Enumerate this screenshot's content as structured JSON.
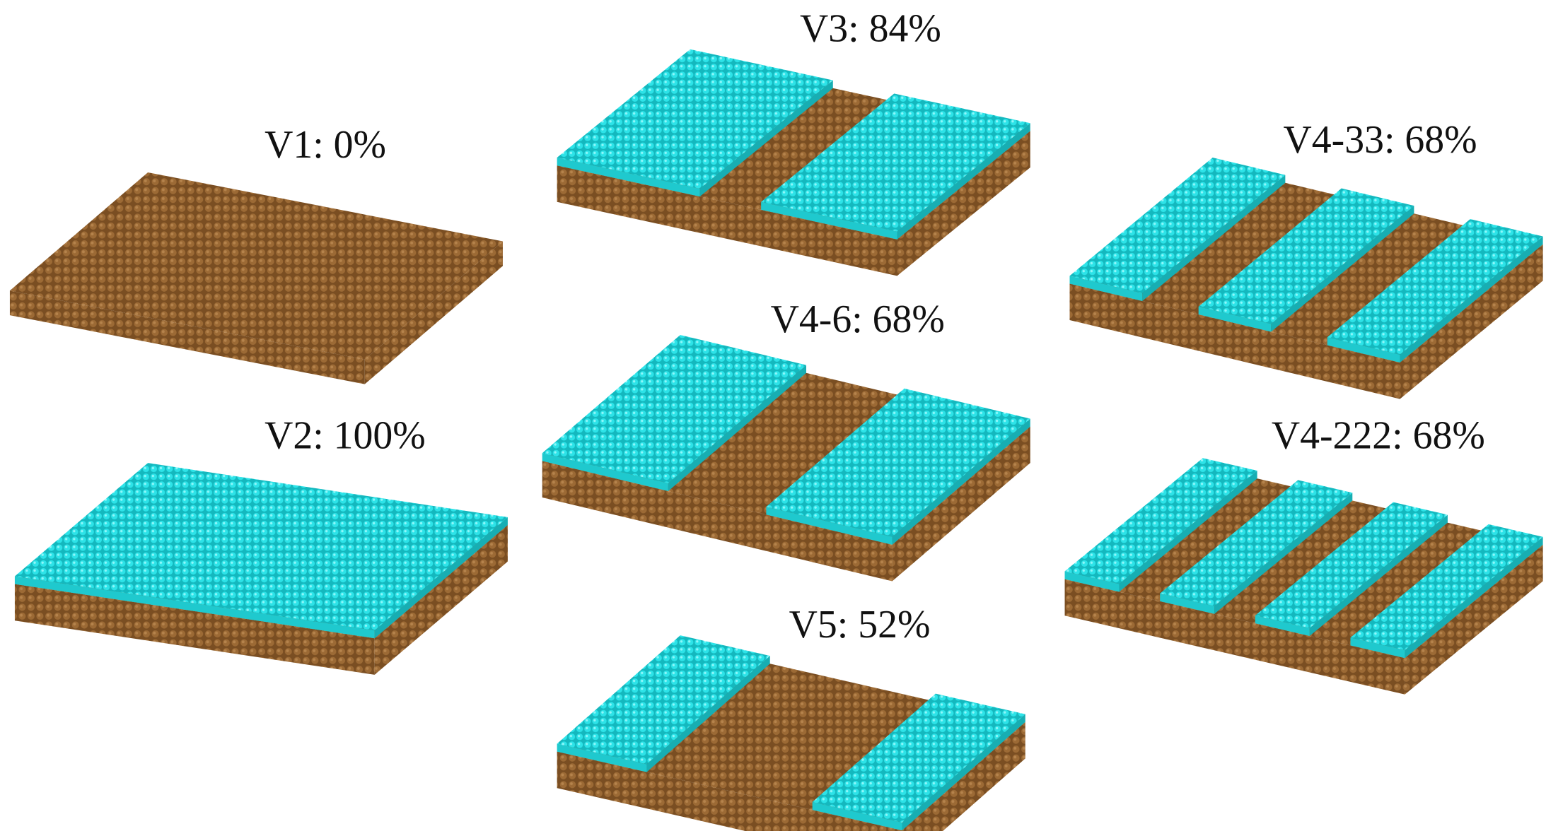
{
  "panels": [
    {
      "label": "V1: 0%"
    },
    {
      "label": "V2: 100%"
    },
    {
      "label": "V3: 84%"
    },
    {
      "label": "V4-6: 68%"
    },
    {
      "label": "V5: 52%"
    },
    {
      "label": "V4-33: 68%"
    },
    {
      "label": "V4-222: 68%"
    }
  ]
}
